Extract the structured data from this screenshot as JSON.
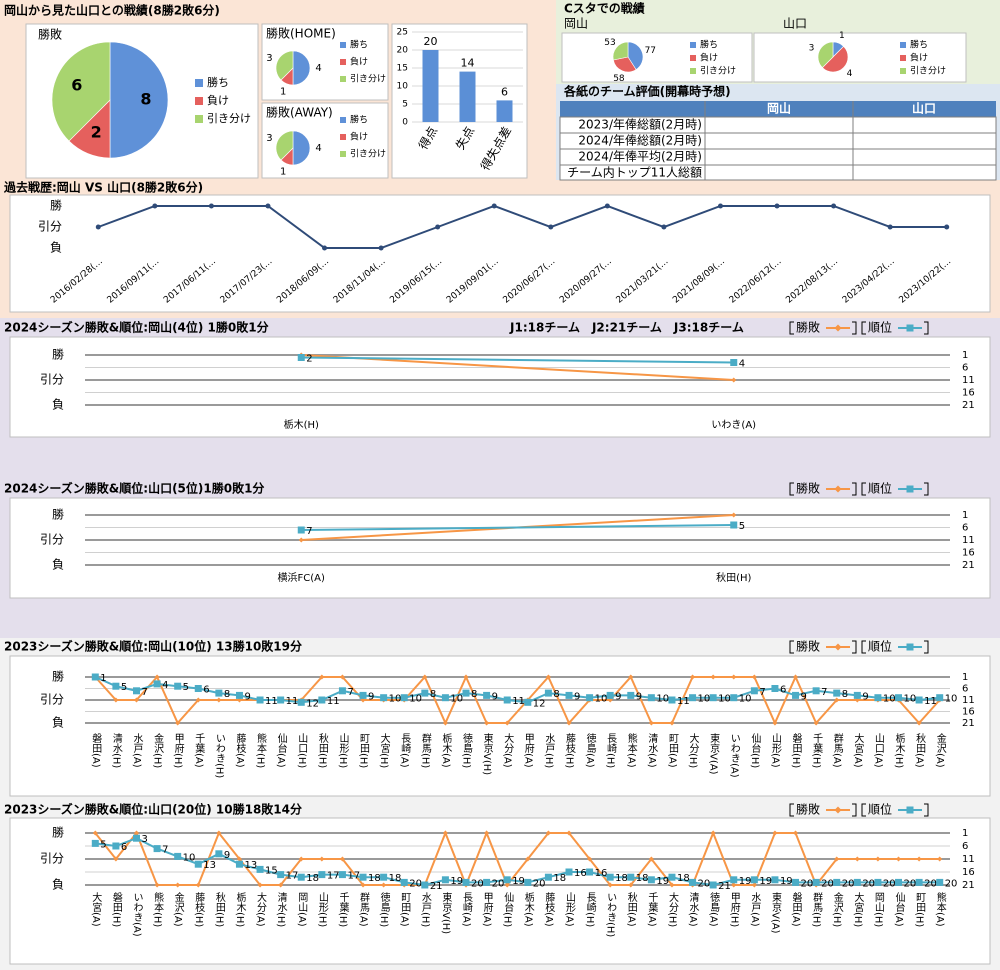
{
  "header": {
    "title": "岡山から見た山口との戦績(8勝2敗6分)",
    "stadium_title": "Cスタでの戦績"
  },
  "table": {
    "title": "各紙のチーム評価(開幕時予想)",
    "columns": [
      "岡山",
      "山口"
    ],
    "rows": [
      "2023/年俸総額(2月時)",
      "2024/年俸総額(2月時)",
      "2024/年俸平均(2月時)",
      "チーム内トップ11人総額"
    ]
  },
  "chart_data": [
    {
      "type": "pie",
      "title": "勝敗",
      "categories": [
        "勝ち",
        "負け",
        "引き分け"
      ],
      "values": [
        8,
        2,
        6
      ],
      "colors": [
        "#5f91d8",
        "#e5605d",
        "#a8d46f"
      ]
    },
    {
      "type": "pie",
      "title": "勝敗(HOME)",
      "categories": [
        "勝ち",
        "負け",
        "引き分け"
      ],
      "values": [
        4,
        1,
        3
      ],
      "colors": [
        "#5f91d8",
        "#e5605d",
        "#a8d46f"
      ]
    },
    {
      "type": "pie",
      "title": "勝敗(AWAY)",
      "categories": [
        "勝ち",
        "負け",
        "引き分け"
      ],
      "values": [
        4,
        1,
        3
      ],
      "colors": [
        "#5f91d8",
        "#e5605d",
        "#a8d46f"
      ]
    },
    {
      "type": "bar",
      "categories": [
        "得点",
        "失点",
        "得失点差"
      ],
      "values": [
        20,
        14,
        6
      ],
      "color": "#5b8fd6",
      "ylim": [
        0,
        25
      ],
      "yticks": [
        0,
        5,
        10,
        15,
        20,
        25
      ],
      "grid": true
    },
    {
      "type": "pie",
      "title": "岡山",
      "categories": [
        "勝ち",
        "負け",
        "引き分け"
      ],
      "values": [
        77,
        58,
        53
      ],
      "colors": [
        "#5f91d8",
        "#e5605d",
        "#a8d46f"
      ]
    },
    {
      "type": "pie",
      "title": "山口",
      "categories": [
        "勝ち",
        "負け",
        "引き分け"
      ],
      "values": [
        1,
        4,
        3
      ],
      "colors": [
        "#5f91d8",
        "#e5605d",
        "#a8d46f"
      ]
    },
    {
      "type": "line",
      "title": "過去戦歴:岡山 VS 山口(8勝2敗6分)",
      "categories": [
        "2016/02/28(…",
        "2016/09/11(…",
        "2017/06/11(…",
        "2017/07/23(…",
        "2018/06/09(…",
        "2018/11/04(…",
        "2019/06/15(…",
        "2019/09/01(…",
        "2020/06/27(…",
        "2020/09/27(…",
        "2021/03/21(…",
        "2021/08/09(…",
        "2022/06/12(…",
        "2022/08/13(…",
        "2023/04/22(…",
        "2023/10/22(…"
      ],
      "values": [
        0,
        1,
        1,
        1,
        -1,
        -1,
        0,
        1,
        0,
        1,
        0,
        1,
        1,
        1,
        0,
        0
      ],
      "color": "#2f4b78",
      "ylim": [
        -1,
        1
      ],
      "yticks": [
        {
          "value": 1,
          "label": "勝"
        },
        {
          "value": 0,
          "label": "引分"
        },
        {
          "value": -1,
          "label": "負"
        }
      ],
      "grid": false
    },
    {
      "type": "combo",
      "title": "2024シーズン勝敗&順位:岡山(4位) 1勝0敗1分",
      "annotation": "J1:18チーム　J2:21チーム　J3:18チーム",
      "categories": [
        "栃木(H)",
        "いわき(A)"
      ],
      "series": [
        {
          "name": "勝敗",
          "color": "#f79646",
          "values": [
            1,
            0
          ]
        },
        {
          "name": "順位",
          "color": "#4bacc6",
          "axis": "y2",
          "values": [
            2,
            4
          ]
        }
      ],
      "ylim": [
        -1,
        1
      ],
      "yticks": [
        {
          "value": 1,
          "label": "勝"
        },
        {
          "value": 0,
          "label": "引分"
        },
        {
          "value": -1,
          "label": "負"
        }
      ],
      "y2lim": [
        21,
        1
      ],
      "y2ticks": [
        1,
        6,
        11,
        16,
        21
      ],
      "grid": true
    },
    {
      "type": "combo",
      "title": "2024シーズン勝敗&順位:山口(5位)1勝0敗1分",
      "categories": [
        "横浜FC(A)",
        "秋田(H)"
      ],
      "series": [
        {
          "name": "勝敗",
          "color": "#f79646",
          "values": [
            0,
            1
          ]
        },
        {
          "name": "順位",
          "color": "#4bacc6",
          "axis": "y2",
          "values": [
            7,
            5
          ]
        }
      ],
      "ylim": [
        -1,
        1
      ],
      "yticks": [
        {
          "value": 1,
          "label": "勝"
        },
        {
          "value": 0,
          "label": "引分"
        },
        {
          "value": -1,
          "label": "負"
        }
      ],
      "y2lim": [
        21,
        1
      ],
      "y2ticks": [
        1,
        6,
        11,
        16,
        21
      ],
      "grid": true
    },
    {
      "type": "combo",
      "title": "2023シーズン勝敗&順位:岡山(10位) 13勝10敗19分",
      "categories": [
        "磐田(A)",
        "清水(H)",
        "水戸(A)",
        "金沢(H)",
        "甲府(H)",
        "千葉(A)",
        "いわき(H)",
        "藤枝(A)",
        "熊本(H)",
        "仙台(A)",
        "山口(H)",
        "秋田(H)",
        "山形(H)",
        "町田(H)",
        "大宮(H)",
        "長崎(A)",
        "群馬(H)",
        "栃木(A)",
        "徳島(H)",
        "東京V(H)",
        "大分(A)",
        "甲府(A)",
        "水戸(H)",
        "藤枝(H)",
        "徳島(A)",
        "長崎(H)",
        "熊本(A)",
        "清水(A)",
        "町田(A)",
        "大分(H)",
        "東京V(A)",
        "いわき(A)",
        "仙台(H)",
        "山形(A)",
        "磐田(H)",
        "千葉(H)",
        "群馬(A)",
        "大宮(A)",
        "山口(A)",
        "栃木(H)",
        "秋田(A)",
        "金沢(A)"
      ],
      "series": [
        {
          "name": "勝敗",
          "color": "#f79646",
          "values": [
            1,
            0,
            0,
            1,
            -1,
            0,
            0,
            0,
            0,
            0,
            0,
            1,
            1,
            0,
            0,
            0,
            1,
            -1,
            1,
            -1,
            -1,
            0,
            1,
            -1,
            0,
            0,
            1,
            -1,
            -1,
            1,
            1,
            1,
            1,
            -1,
            1,
            -1,
            0,
            0,
            0,
            0,
            -1,
            0
          ]
        },
        {
          "name": "順位",
          "color": "#4bacc6",
          "axis": "y2",
          "values": [
            1,
            5,
            7,
            4,
            5,
            6,
            8,
            9,
            11,
            11,
            12,
            11,
            7,
            9,
            10,
            10,
            8,
            10,
            8,
            9,
            11,
            12,
            8,
            9,
            10,
            9,
            9,
            10,
            11,
            10,
            10,
            10,
            7,
            6,
            9,
            7,
            8,
            9,
            10,
            10,
            11,
            10
          ]
        }
      ],
      "ylim": [
        -1,
        1
      ],
      "yticks": [
        {
          "value": 1,
          "label": "勝"
        },
        {
          "value": 0,
          "label": "引分"
        },
        {
          "value": -1,
          "label": "負"
        }
      ],
      "y2lim": [
        21,
        1
      ],
      "y2ticks": [
        1,
        6,
        11,
        16,
        21
      ],
      "grid": true
    },
    {
      "type": "combo",
      "title": "2023シーズン勝敗&順位:山口(20位) 10勝18敗14分",
      "categories": [
        "大宮(A)",
        "磐田(H)",
        "いわき(A)",
        "熊本(H)",
        "金沢(A)",
        "藤枝(H)",
        "秋田(H)",
        "栃木(H)",
        "大分(A)",
        "清水(H)",
        "岡山(A)",
        "山形(H)",
        "千葉(H)",
        "群馬(A)",
        "徳島(H)",
        "町田(A)",
        "水戸(H)",
        "東京V(H)",
        "長崎(A)",
        "甲府(A)",
        "仙台(H)",
        "栃木(A)",
        "藤枝(A)",
        "山形(A)",
        "長崎(H)",
        "いわき(H)",
        "秋田(A)",
        "千葉(A)",
        "大分(H)",
        "清水(A)",
        "徳島(A)",
        "甲府(H)",
        "水戸(A)",
        "東京V(A)",
        "磐田(A)",
        "群馬(H)",
        "金沢(H)",
        "大宮(H)",
        "岡山(H)",
        "仙台(A)",
        "町田(H)",
        "熊本(A)"
      ],
      "series": [
        {
          "name": "勝敗",
          "color": "#f79646",
          "values": [
            1,
            0,
            1,
            -1,
            -1,
            -1,
            1,
            0,
            -1,
            -1,
            0,
            0,
            0,
            -1,
            -1,
            -1,
            -1,
            1,
            -1,
            1,
            -1,
            0,
            1,
            1,
            0,
            -1,
            -1,
            0,
            -1,
            -1,
            1,
            -1,
            -1,
            1,
            1,
            -1,
            0,
            0,
            0,
            0,
            0,
            0
          ]
        },
        {
          "name": "順位",
          "color": "#4bacc6",
          "axis": "y2",
          "values": [
            5,
            6,
            3,
            7,
            10,
            13,
            9,
            13,
            15,
            17,
            18,
            17,
            17,
            18,
            18,
            20,
            21,
            19,
            20,
            20,
            19,
            20,
            18,
            16,
            16,
            18,
            18,
            19,
            18,
            20,
            21,
            19,
            19,
            19,
            20,
            20,
            20,
            20,
            20,
            20,
            20,
            20
          ]
        }
      ],
      "ylim": [
        -1,
        1
      ],
      "yticks": [
        {
          "value": 1,
          "label": "勝"
        },
        {
          "value": 0,
          "label": "引分"
        },
        {
          "value": -1,
          "label": "負"
        }
      ],
      "y2lim": [
        21,
        1
      ],
      "y2ticks": [
        1,
        6,
        11,
        16,
        21
      ],
      "grid": true
    }
  ]
}
